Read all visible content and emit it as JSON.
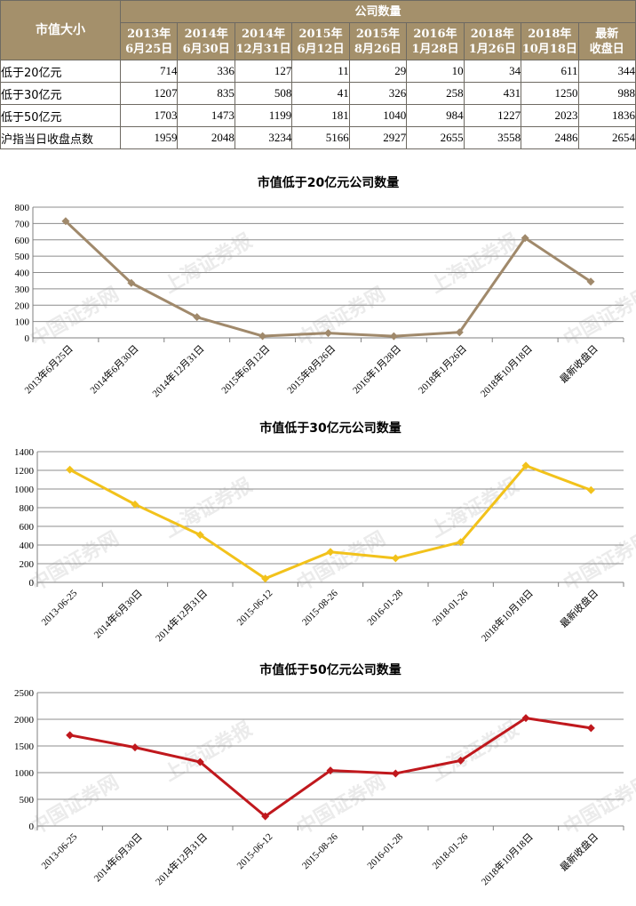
{
  "table": {
    "corner_label": "市值大小",
    "group_header": "公司数量",
    "date_headers": [
      [
        "2013年",
        "6月25日"
      ],
      [
        "2014年",
        "6月30日"
      ],
      [
        "2014年",
        "12月31日"
      ],
      [
        "2015年",
        "6月12日"
      ],
      [
        "2015年",
        "8月26日"
      ],
      [
        "2016年",
        "1月28日"
      ],
      [
        "2018年",
        "1月26日"
      ],
      [
        "2018年",
        "10月18日"
      ],
      [
        "最新",
        "收盘日"
      ]
    ],
    "rows": [
      {
        "label": "低于20亿元",
        "values": [
          714,
          336,
          127,
          11,
          29,
          10,
          34,
          611,
          344
        ]
      },
      {
        "label": "低于30亿元",
        "values": [
          1207,
          835,
          508,
          41,
          326,
          258,
          431,
          1250,
          988
        ]
      },
      {
        "label": "低于50亿元",
        "values": [
          1703,
          1473,
          1199,
          181,
          1040,
          984,
          1227,
          2023,
          1836
        ]
      },
      {
        "label": "沪指当日收盘点数",
        "values": [
          1959,
          2048,
          3234,
          5166,
          2927,
          2655,
          3558,
          2486,
          2654
        ]
      }
    ]
  },
  "chart_data": [
    {
      "type": "line",
      "title": "市值低于20亿元公司数量",
      "categories": [
        "2013年6月25日",
        "2014年6月30日",
        "2014年12月31日",
        "2015年6月12日",
        "2015年8月26日",
        "2016年1月28日",
        "2018年1月26日",
        "2018年10月18日",
        "最新收盘日"
      ],
      "values": [
        714,
        336,
        127,
        11,
        29,
        10,
        34,
        611,
        344
      ],
      "ylim": [
        0,
        800
      ],
      "yticks": [
        0,
        100,
        200,
        300,
        400,
        500,
        600,
        700,
        800
      ],
      "color": "#a0896b",
      "marker": "diamond",
      "grid": true
    },
    {
      "type": "line",
      "title": "市值低于30亿元公司数量",
      "categories": [
        "2013-06-25",
        "2014年6月30日",
        "2014年12月31日",
        "2015-06-12",
        "2015-08-26",
        "2016-01-28",
        "2018-01-26",
        "2018年10月18日",
        "最新收盘日"
      ],
      "values": [
        1207,
        835,
        508,
        41,
        326,
        258,
        431,
        1250,
        988
      ],
      "ylim": [
        0,
        1400
      ],
      "yticks": [
        0,
        200,
        400,
        600,
        800,
        1000,
        1200,
        1400
      ],
      "color": "#f2c21b",
      "marker": "diamond",
      "grid": true
    },
    {
      "type": "line",
      "title": "市值低于50亿元公司数量",
      "categories": [
        "2013-06-25",
        "2014年6月30日",
        "2014年12月31日",
        "2015-06-12",
        "2015-08-26",
        "2016-01-28",
        "2018-01-26",
        "2018年10月18日",
        "最新收盘日"
      ],
      "values": [
        1703,
        1473,
        1199,
        181,
        1040,
        984,
        1227,
        2023,
        1836
      ],
      "ylim": [
        0,
        2500
      ],
      "yticks": [
        0,
        500,
        1000,
        1500,
        2000,
        2500
      ],
      "color": "#c0181d",
      "marker": "diamond",
      "grid": true
    }
  ]
}
